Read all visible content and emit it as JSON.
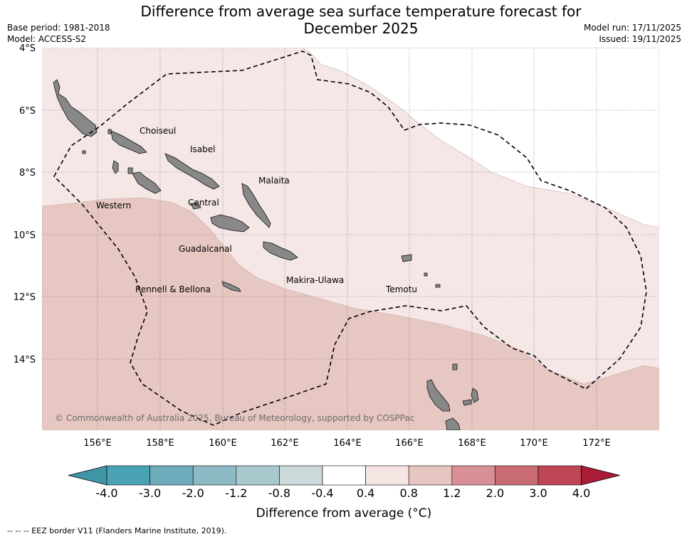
{
  "title_line1": "Difference from average sea surface temperature forecast for",
  "title_line2": "December 2025",
  "left_info": {
    "base_period": "Base period: 1981-2018",
    "model": "Model: ACCESS-S2"
  },
  "right_info": {
    "model_run": "Model run: 17/11/2025",
    "issued": "Issued: 19/11/2025"
  },
  "lat_labels": [
    "4°S",
    "6°S",
    "8°S",
    "10°S",
    "12°S",
    "14°S"
  ],
  "lon_labels": [
    "156°E",
    "158°E",
    "160°E",
    "162°E",
    "164°E",
    "166°E",
    "168°E",
    "170°E",
    "172°E"
  ],
  "places": [
    {
      "name": "Choiseul"
    },
    {
      "name": "Isabel"
    },
    {
      "name": "Malaita"
    },
    {
      "name": "Western"
    },
    {
      "name": "Central"
    },
    {
      "name": "Guadalcanal"
    },
    {
      "name": "Makira-Ulawa"
    },
    {
      "name": "Rennell & Bellona"
    },
    {
      "name": "Temotu"
    }
  ],
  "credit": "© Commonwealth of Australia 2025, Bureau of Meteorology, supported by COSPPac",
  "colorbar": {
    "ticks": [
      "-4.0",
      "-3.0",
      "-2.0",
      "-1.2",
      "-0.8",
      "-0.4",
      "0.4",
      "0.8",
      "1.2",
      "2.0",
      "3.0",
      "4.0"
    ],
    "colors": [
      "#3e95a6",
      "#4aa3b5",
      "#6eacbc",
      "#8dbac5",
      "#a9c8cd",
      "#cbd9db",
      "#ffffff",
      "#f5e6e4",
      "#e7c5c0",
      "#d88f95",
      "#c96b74",
      "#bf4655",
      "#a91e36"
    ],
    "label": "Difference from average (°C)"
  },
  "footer": "--  --  -- EEZ border V11 (Flanders Marine Institute, 2019)."
}
